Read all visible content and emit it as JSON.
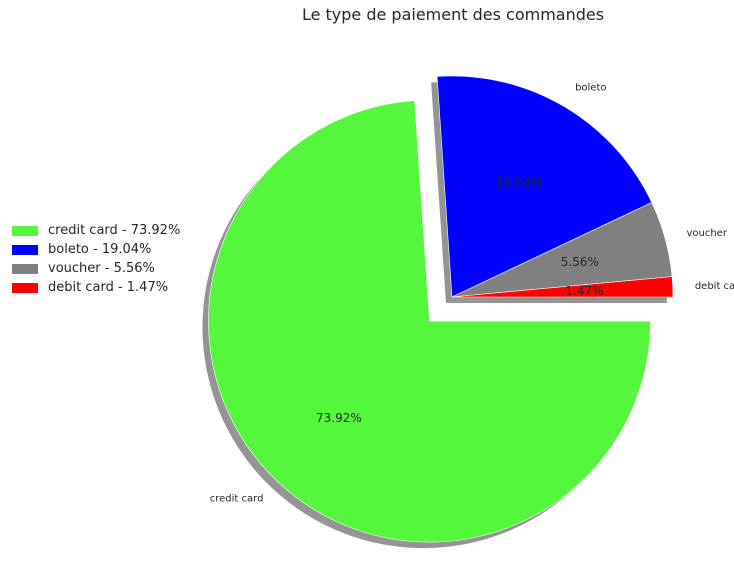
{
  "chart_data": {
    "type": "pie",
    "title": "Le type de paiement des commandes",
    "slices": [
      {
        "label": "credit card",
        "value": 73.92,
        "pct_label": "73.92%",
        "legend": "credit card - 73.92%",
        "color": "#55f73c",
        "explode": true
      },
      {
        "label": "boleto",
        "value": 19.04,
        "pct_label": "19.04%",
        "legend": "boleto - 19.04%",
        "color": "#0000ff",
        "explode": false
      },
      {
        "label": "voucher",
        "value": 5.56,
        "pct_label": "5.56%",
        "legend": "voucher - 5.56%",
        "color": "#808080",
        "explode": false
      },
      {
        "label": "debit card",
        "value": 1.47,
        "pct_label": "1.47%",
        "legend": "debit card - 1.47%",
        "color": "#ff0000",
        "explode": false
      }
    ],
    "start_angle_deg": 0,
    "direction": "clockwise",
    "shadow": true,
    "legend_position": "center-left"
  }
}
